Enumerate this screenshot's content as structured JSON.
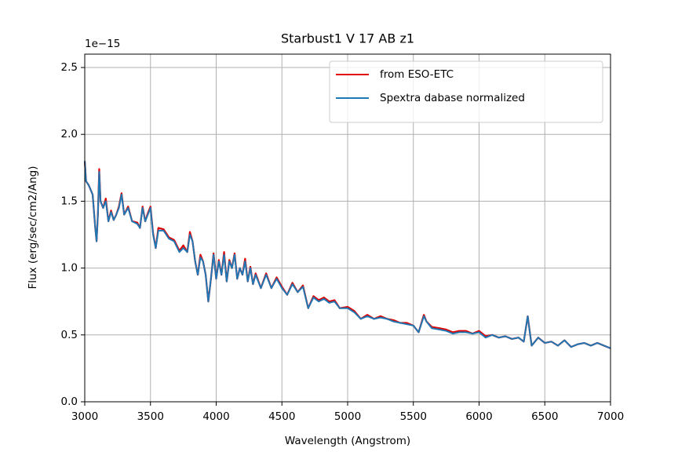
{
  "chart_data": {
    "type": "line",
    "title": "Starbust1 V 17 AB z1",
    "x_label": "Wavelength (Angstrom)",
    "y_label": "Flux (erg/sec/cm2/Ang)",
    "y_offset_label": "1e−15",
    "xlim": [
      3000,
      7000
    ],
    "xticks": [
      3000,
      3500,
      4000,
      4500,
      5000,
      5500,
      6000,
      6500,
      7000
    ],
    "ylim": [
      0,
      2.6
    ],
    "yticks": [
      {
        "value": 0,
        "label": "0.0"
      },
      0.5,
      {
        "value": 1,
        "label": "1.0"
      },
      1.5,
      {
        "value": 2,
        "label": "2.0"
      },
      2.5
    ],
    "grid": true,
    "legend": "upper right",
    "x": [
      3000,
      3010,
      3030,
      3060,
      3080,
      3090,
      3100,
      3110,
      3120,
      3140,
      3160,
      3180,
      3200,
      3220,
      3240,
      3260,
      3280,
      3300,
      3330,
      3360,
      3400,
      3420,
      3440,
      3460,
      3480,
      3500,
      3520,
      3540,
      3560,
      3600,
      3640,
      3680,
      3720,
      3750,
      3780,
      3800,
      3820,
      3840,
      3860,
      3880,
      3900,
      3920,
      3940,
      3960,
      3980,
      4000,
      4020,
      4040,
      4060,
      4080,
      4100,
      4120,
      4140,
      4160,
      4180,
      4200,
      4220,
      4240,
      4260,
      4280,
      4300,
      4340,
      4380,
      4420,
      4460,
      4500,
      4540,
      4580,
      4620,
      4660,
      4700,
      4740,
      4780,
      4820,
      4860,
      4900,
      4940,
      5000,
      5050,
      5100,
      5150,
      5200,
      5250,
      5300,
      5350,
      5400,
      5450,
      5500,
      5540,
      5580,
      5600,
      5640,
      5700,
      5750,
      5800,
      5850,
      5900,
      5950,
      6000,
      6050,
      6100,
      6150,
      6200,
      6250,
      6300,
      6340,
      6370,
      6400,
      6450,
      6500,
      6550,
      6600,
      6650,
      6700,
      6750,
      6800,
      6850,
      6900,
      6950,
      7000
    ],
    "series": [
      {
        "name": "from ESO-ETC",
        "color": "#e00000",
        "values": [
          1.8,
          1.65,
          1.62,
          1.55,
          1.3,
          1.2,
          1.4,
          1.74,
          1.5,
          1.45,
          1.52,
          1.35,
          1.43,
          1.36,
          1.4,
          1.46,
          1.56,
          1.4,
          1.46,
          1.35,
          1.34,
          1.3,
          1.46,
          1.35,
          1.41,
          1.46,
          1.26,
          1.15,
          1.3,
          1.29,
          1.23,
          1.21,
          1.13,
          1.17,
          1.12,
          1.27,
          1.2,
          1.05,
          0.95,
          1.1,
          1.05,
          0.95,
          0.75,
          0.92,
          1.11,
          0.92,
          1.06,
          0.95,
          1.12,
          0.9,
          1.06,
          1.0,
          1.11,
          0.92,
          1.0,
          0.95,
          1.07,
          0.9,
          1.01,
          0.88,
          0.96,
          0.85,
          0.96,
          0.85,
          0.93,
          0.86,
          0.8,
          0.89,
          0.82,
          0.87,
          0.7,
          0.79,
          0.76,
          0.78,
          0.75,
          0.76,
          0.7,
          0.71,
          0.68,
          0.62,
          0.65,
          0.62,
          0.64,
          0.62,
          0.61,
          0.59,
          0.59,
          0.57,
          0.52,
          0.65,
          0.6,
          0.56,
          0.55,
          0.54,
          0.52,
          0.53,
          0.53,
          0.51,
          0.53,
          0.49,
          0.5,
          0.48,
          0.49,
          0.47,
          0.48,
          0.45,
          0.64,
          0.42,
          0.48,
          0.44,
          0.45,
          0.42,
          0.46,
          0.41,
          0.43,
          0.44,
          0.42,
          0.44,
          0.42,
          0.4
        ]
      },
      {
        "name": "Spextra dabase normalized",
        "color": "#1f77b4",
        "values": [
          1.8,
          1.65,
          1.62,
          1.55,
          1.3,
          1.2,
          1.4,
          1.72,
          1.5,
          1.45,
          1.5,
          1.35,
          1.42,
          1.36,
          1.4,
          1.45,
          1.55,
          1.4,
          1.45,
          1.35,
          1.33,
          1.3,
          1.45,
          1.35,
          1.4,
          1.45,
          1.25,
          1.15,
          1.28,
          1.28,
          1.22,
          1.2,
          1.12,
          1.15,
          1.12,
          1.25,
          1.2,
          1.05,
          0.95,
          1.08,
          1.05,
          0.95,
          0.75,
          0.92,
          1.1,
          0.92,
          1.05,
          0.95,
          1.1,
          0.9,
          1.05,
          1.0,
          1.1,
          0.92,
          1.0,
          0.95,
          1.05,
          0.9,
          1.0,
          0.88,
          0.95,
          0.85,
          0.95,
          0.85,
          0.92,
          0.85,
          0.8,
          0.88,
          0.82,
          0.86,
          0.7,
          0.78,
          0.75,
          0.77,
          0.74,
          0.75,
          0.7,
          0.7,
          0.67,
          0.62,
          0.64,
          0.62,
          0.63,
          0.62,
          0.6,
          0.59,
          0.58,
          0.57,
          0.52,
          0.64,
          0.6,
          0.55,
          0.54,
          0.53,
          0.51,
          0.52,
          0.52,
          0.51,
          0.52,
          0.48,
          0.5,
          0.48,
          0.49,
          0.47,
          0.48,
          0.45,
          0.64,
          0.42,
          0.48,
          0.44,
          0.45,
          0.42,
          0.46,
          0.41,
          0.43,
          0.44,
          0.42,
          0.44,
          0.42,
          0.4
        ]
      }
    ]
  }
}
